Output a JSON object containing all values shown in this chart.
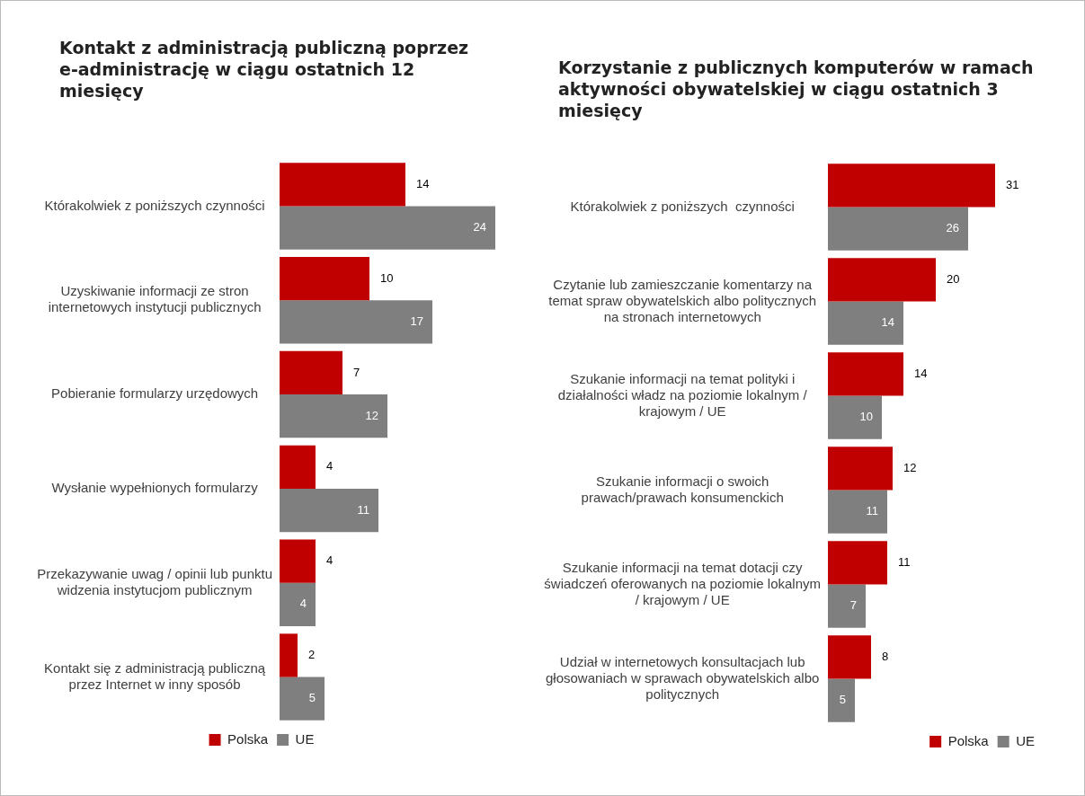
{
  "chart_data": [
    {
      "type": "bar",
      "orientation": "horizontal",
      "title": "Kontakt z administracją publiczną poprzez e-administrację w ciągu ostatnich 12 miesięcy",
      "categories": [
        "Którakolwiek z poniższych czynności",
        "Uzyskiwanie informacji ze stron internetowych instytucji publicznych",
        "Pobieranie formularzy urzędowych",
        "Wysłanie wypełnionych formularzy",
        "Przekazywanie uwag / opinii lub punktu widzenia instytucjom publicznym",
        "Kontakt się z administracją publiczną przez Internet w inny sposób"
      ],
      "series": [
        {
          "name": "Polska",
          "color": "#c00000",
          "values": [
            14,
            10,
            7,
            4,
            4,
            2
          ]
        },
        {
          "name": "UE",
          "color": "#7f7f7f",
          "values": [
            24,
            17,
            12,
            11,
            4,
            5
          ]
        }
      ],
      "data_labels": true,
      "legend": "bottom"
    },
    {
      "type": "bar",
      "orientation": "horizontal",
      "title": "Korzystanie z publicznych komputerów w ramach aktywności obywatelskiej w ciągu ostatnich 3 miesięcy",
      "categories": [
        "Którakolwiek z poniższych  czynności",
        "Czytanie lub zamieszczanie komentarzy na temat spraw obywatelskich albo politycznych na stronach internetowych",
        "Szukanie informacji na temat polityki i działalności władz na poziomie lokalnym / krajowym / UE",
        "Szukanie informacji o swoich prawach/prawach konsumenckich",
        "Szukanie informacji na temat dotacji czy świadczeń oferowanych na poziomie lokalnym / krajowym / UE",
        "Udział w internetowych konsultacjach lub głosowaniach w sprawach obywatelskich albo politycznych"
      ],
      "series": [
        {
          "name": "Polska",
          "color": "#c00000",
          "values": [
            31,
            20,
            14,
            12,
            11,
            8
          ]
        },
        {
          "name": "UE",
          "color": "#7f7f7f",
          "values": [
            26,
            14,
            10,
            11,
            7,
            5
          ]
        }
      ],
      "data_labels": true,
      "legend": "bottom right"
    }
  ]
}
